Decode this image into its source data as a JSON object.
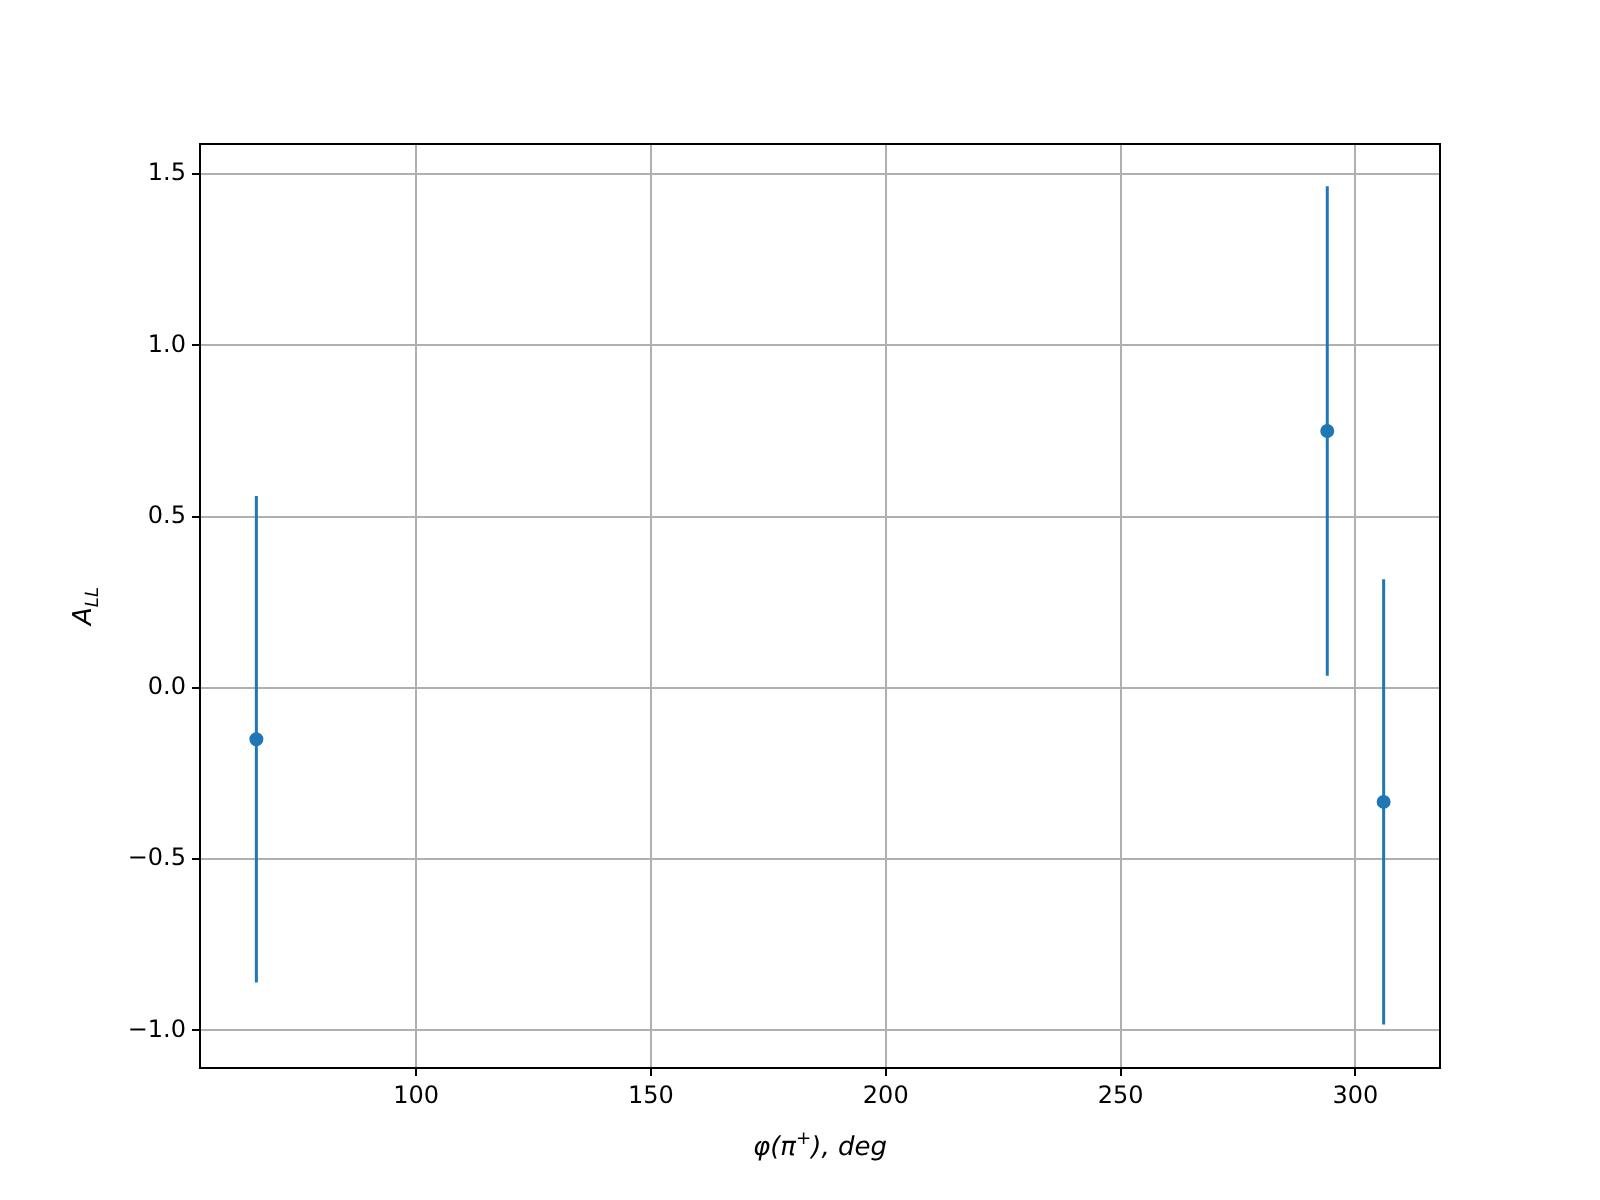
{
  "chart_data": {
    "type": "scatter",
    "xlabel": "φ(π$^{+}$), deg",
    "ylabel": "A$_{LL}$",
    "x": [
      66,
      294,
      306
    ],
    "series": [
      {
        "color": "#1f77b4",
        "values": [
          -0.15,
          0.75,
          -0.333
        ],
        "errors": [
          0.71,
          0.715,
          0.65
        ]
      }
    ],
    "xlim": [
      54,
      318
    ],
    "ylim": [
      -1.11,
      1.588
    ],
    "xticks": [
      100,
      150,
      200,
      250,
      300
    ],
    "yticks": [
      {
        "value": -1,
        "label": "−1.0"
      },
      {
        "value": -0.5,
        "label": "−0.5"
      },
      {
        "value": 0,
        "label": "0.0"
      },
      {
        "value": 0.5,
        "label": "0.5"
      },
      {
        "value": 1,
        "label": "1.0"
      },
      {
        "value": 1.5,
        "label": "1.5"
      }
    ],
    "grid": true,
    "marker": "circle",
    "legend": false
  }
}
